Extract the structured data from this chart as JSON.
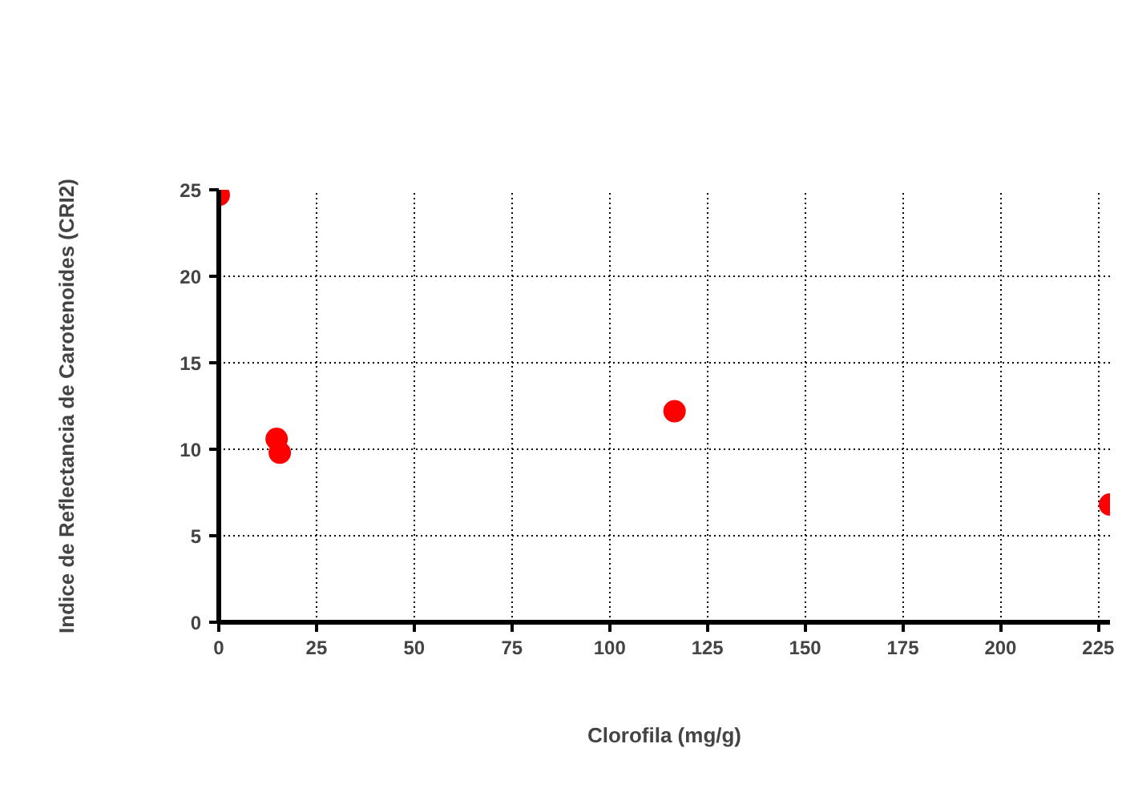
{
  "chart_data": {
    "type": "scatter",
    "xlabel": "Clorofila (mg/g)",
    "ylabel": "Indice de Reflectancia de Carotenoides (CRI2)",
    "x": [
      0,
      14.8,
      15.6,
      116.6,
      228
    ],
    "series": [
      {
        "color": "#ff0000",
        "values": [
          24.7,
          10.6,
          9.8,
          12.2,
          6.8
        ]
      }
    ],
    "xlim": [
      0,
      228
    ],
    "ylim": [
      0,
      25
    ],
    "xticks": [
      0,
      25,
      50,
      75,
      100,
      125,
      150,
      175,
      200,
      225
    ],
    "yticks": [
      0,
      5,
      10,
      15,
      20,
      25
    ],
    "grid": true,
    "marker": "circle"
  }
}
